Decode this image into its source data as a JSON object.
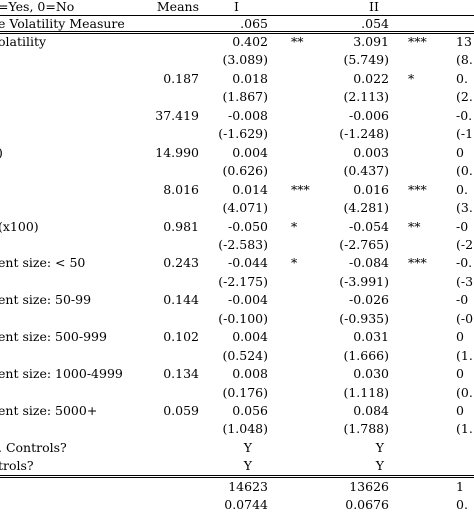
{
  "table": {
    "header": {
      "label": "=Yes, 0=No",
      "means": "Means",
      "col1": "I",
      "col2": "II"
    },
    "mean_row": {
      "label": "e Volatility Measure",
      "col1": ".065",
      "col2": ".054"
    },
    "rows": [
      {
        "label": "olatility",
        "mean": "",
        "v1": "0.402",
        "s1": "**",
        "v2": "3.091",
        "s2": "***",
        "v3": "13"
      },
      {
        "label": "",
        "mean": "",
        "v1": "(3.089)",
        "s1": "",
        "v2": "(5.749)",
        "s2": "",
        "v3": "(8."
      },
      {
        "label": "",
        "mean": "0.187",
        "v1": "0.018",
        "s1": "",
        "v2": "0.022",
        "s2": "*",
        "v3": "0."
      },
      {
        "label": "",
        "mean": "",
        "v1": "(1.867)",
        "s1": "",
        "v2": "(2.113)",
        "s2": "",
        "v3": "(2."
      },
      {
        "label": "",
        "mean": "37.419",
        "v1": "-0.008",
        "s1": "",
        "v2": "-0.006",
        "s2": "",
        "v3": "-0."
      },
      {
        "label": "",
        "mean": "",
        "v1": "(-1.629)",
        "s1": "",
        "v2": "(-1.248)",
        "s2": "",
        "v3": "(-1."
      },
      {
        "label": ")",
        "mean": "14.990",
        "v1": "0.004",
        "s1": "",
        "v2": "0.003",
        "s2": "",
        "v3": "0"
      },
      {
        "label": "",
        "mean": "",
        "v1": "(0.626)",
        "s1": "",
        "v2": "(0.437)",
        "s2": "",
        "v3": "(0."
      },
      {
        "label": "",
        "mean": "8.016",
        "v1": "0.014",
        "s1": "***",
        "v2": "0.016",
        "s2": "***",
        "v3": "0."
      },
      {
        "label": "",
        "mean": "",
        "v1": "(4.071)",
        "s1": "",
        "v2": "(4.281)",
        "s2": "",
        "v3": "(3."
      },
      {
        "label": " (x100)",
        "mean": "0.981",
        "v1": "-0.050",
        "s1": "*",
        "v2": "-0.054",
        "s2": "**",
        "v3": "-0"
      },
      {
        "label": "",
        "mean": "",
        "v1": "(-2.583)",
        "s1": "",
        "v2": "(-2.765)",
        "s2": "",
        "v3": "(-2."
      },
      {
        "label": "ent size: < 50",
        "mean": "0.243",
        "v1": "-0.044",
        "s1": "*",
        "v2": "-0.084",
        "s2": "***",
        "v3": "-0."
      },
      {
        "label": "",
        "mean": "",
        "v1": "(-2.175)",
        "s1": "",
        "v2": "(-3.991)",
        "s2": "",
        "v3": "(-3."
      },
      {
        "label": "ent size: 50-99",
        "mean": "0.144",
        "v1": "-0.004",
        "s1": "",
        "v2": "-0.026",
        "s2": "",
        "v3": "-0"
      },
      {
        "label": "",
        "mean": "",
        "v1": "(-0.100)",
        "s1": "",
        "v2": "(-0.935)",
        "s2": "",
        "v3": "(-0."
      },
      {
        "label": "ent size: 500-999",
        "mean": "0.102",
        "v1": "0.004",
        "s1": "",
        "v2": "0.031",
        "s2": "",
        "v3": "0"
      },
      {
        "label": "",
        "mean": "",
        "v1": "(0.524)",
        "s1": "",
        "v2": "(1.666)",
        "s2": "",
        "v3": "(1."
      },
      {
        "label": "ent size: 1000-4999",
        "mean": "0.134",
        "v1": "0.008",
        "s1": "",
        "v2": "0.030",
        "s2": "",
        "v3": "0"
      },
      {
        "label": "",
        "mean": "",
        "v1": "(0.176)",
        "s1": "",
        "v2": "(1.118)",
        "s2": "",
        "v3": "(0."
      },
      {
        "label": "ent size: 5000+",
        "mean": "0.059",
        "v1": "0.056",
        "s1": "",
        "v2": "0.084",
        "s2": "",
        "v3": "0"
      },
      {
        "label": "",
        "mean": "",
        "v1": "(1.048)",
        "s1": "",
        "v2": "(1.788)",
        "s2": "",
        "v3": "(1."
      }
    ],
    "controls": [
      {
        "label": ". Controls?",
        "v1": "Y",
        "v2": "Y"
      },
      {
        "label": "trols?",
        "v1": "Y",
        "v2": "Y"
      }
    ],
    "footer": [
      {
        "v1": "14623",
        "v2": "13626",
        "v3": "1"
      },
      {
        "v1": "0.0744",
        "v2": "0.0676",
        "v3": "0."
      }
    ]
  }
}
